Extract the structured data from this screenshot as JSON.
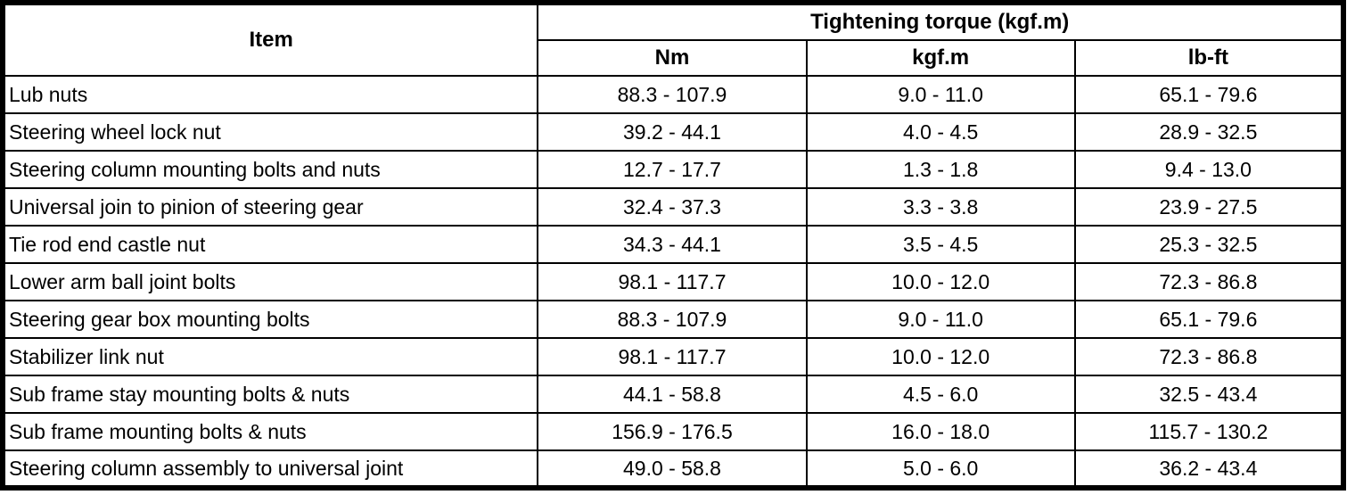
{
  "colors": {
    "border": "#000000",
    "background": "#ffffff",
    "text": "#000000"
  },
  "table": {
    "header": {
      "item_label": "Item",
      "torque_group_label": "Tightening torque (kgf.m)",
      "unit_columns": [
        "Nm",
        "kgf.m",
        "lb-ft"
      ]
    },
    "rows": [
      {
        "item": "Lub nuts",
        "nm": "88.3 - 107.9",
        "kgfm": "9.0 - 11.0",
        "lbft": "65.1 - 79.6"
      },
      {
        "item": "Steering wheel lock nut",
        "nm": "39.2 - 44.1",
        "kgfm": "4.0 - 4.5",
        "lbft": "28.9 - 32.5"
      },
      {
        "item": "Steering column mounting bolts and nuts",
        "nm": "12.7 - 17.7",
        "kgfm": "1.3 - 1.8",
        "lbft": "9.4 - 13.0"
      },
      {
        "item": "Universal join to pinion of steering gear",
        "nm": "32.4 - 37.3",
        "kgfm": "3.3 - 3.8",
        "lbft": "23.9 - 27.5"
      },
      {
        "item": "Tie rod end castle nut",
        "nm": "34.3 - 44.1",
        "kgfm": "3.5 - 4.5",
        "lbft": "25.3 - 32.5"
      },
      {
        "item": "Lower arm ball joint bolts",
        "nm": "98.1 - 117.7",
        "kgfm": "10.0 - 12.0",
        "lbft": "72.3 - 86.8"
      },
      {
        "item": "Steering gear box mounting bolts",
        "nm": "88.3 - 107.9",
        "kgfm": "9.0 - 11.0",
        "lbft": "65.1 - 79.6"
      },
      {
        "item": "Stabilizer link nut",
        "nm": "98.1 - 117.7",
        "kgfm": "10.0 - 12.0",
        "lbft": "72.3 - 86.8"
      },
      {
        "item": "Sub frame stay mounting bolts & nuts",
        "nm": "44.1 - 58.8",
        "kgfm": "4.5 - 6.0",
        "lbft": "32.5 - 43.4"
      },
      {
        "item": "Sub frame mounting bolts & nuts",
        "nm": "156.9 - 176.5",
        "kgfm": "16.0 - 18.0",
        "lbft": "115.7 - 130.2"
      },
      {
        "item": "Steering column assembly to universal joint",
        "nm": "49.0 - 58.8",
        "kgfm": "5.0 - 6.0",
        "lbft": "36.2 - 43.4"
      }
    ]
  }
}
